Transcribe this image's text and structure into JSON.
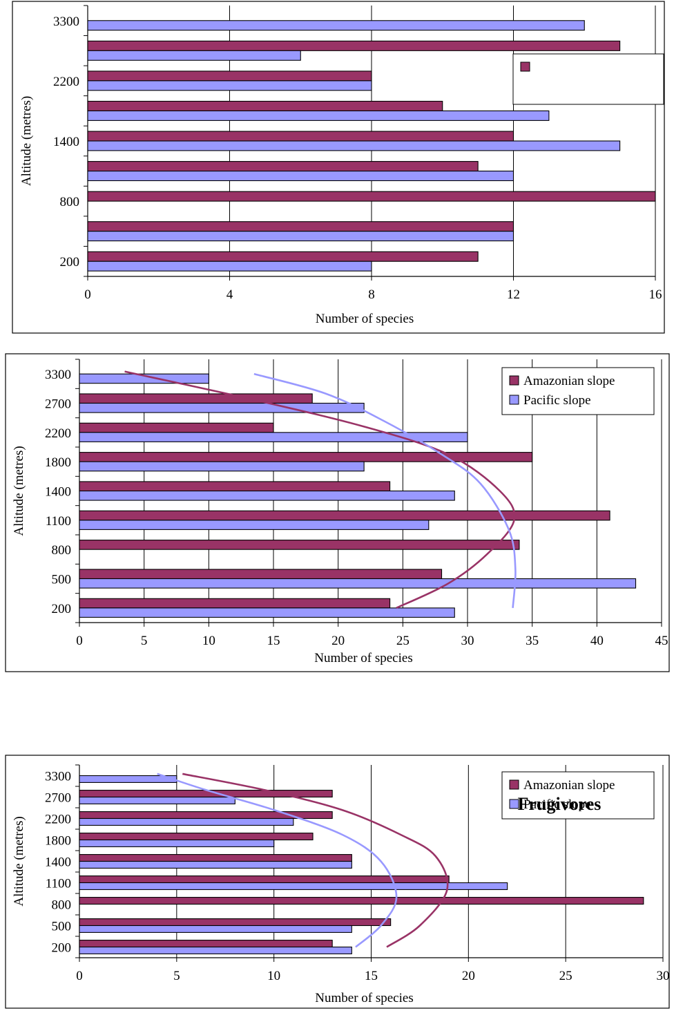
{
  "colors": {
    "amazonian": "#993366",
    "pacific": "#9999FF",
    "amazonian_curve": "#993366",
    "pacific_curve": "#9999FF"
  },
  "chart_data": [
    {
      "type": "bar",
      "orientation": "horizontal",
      "title": "",
      "xlabel": "Number of species",
      "ylabel": "Altitude (metres)",
      "xlim": [
        0,
        16
      ],
      "xticks": [
        "0",
        "4",
        "8",
        "12",
        "16"
      ],
      "categories": [
        "200",
        "",
        "800",
        "",
        "1400",
        "",
        "2200",
        "",
        "3300"
      ],
      "series": [
        {
          "key": "amazonian",
          "values": [
            11,
            12,
            16,
            11,
            12,
            10,
            8,
            15,
            null
          ]
        },
        {
          "key": "pacific",
          "values": [
            8,
            12,
            null,
            12,
            15,
            13,
            8,
            6,
            14
          ]
        }
      ],
      "legend": {
        "placement": "top-right",
        "entries": [
          ""
        ]
      },
      "grid": "vertical",
      "annotation": ""
    },
    {
      "type": "bar",
      "orientation": "horizontal",
      "title": "",
      "xlabel": "Number of species",
      "ylabel": "Altitude (metres)",
      "xlim": [
        0,
        45
      ],
      "xticks": [
        "0",
        "5",
        "10",
        "15",
        "20",
        "25",
        "30",
        "35",
        "40",
        "45"
      ],
      "categories": [
        "200",
        "500",
        "800",
        "1100",
        "1400",
        "1800",
        "2200",
        "2700",
        "3300"
      ],
      "series": [
        {
          "key": "amazonian",
          "name": "Amazonian slope",
          "values": [
            24,
            28,
            34,
            41,
            24,
            35,
            15,
            18,
            null
          ]
        },
        {
          "key": "pacific",
          "name": "Pacific slope",
          "values": [
            29,
            43,
            null,
            27,
            29,
            22,
            30,
            22,
            10
          ]
        }
      ],
      "legend": {
        "placement": "top-right",
        "entries": [
          "Amazonian slope",
          "Pacific slope"
        ]
      },
      "grid": "vertical",
      "trend_curves": [
        {
          "key": "amazonian_curve",
          "points": [
            [
              24.5,
              200
            ],
            [
              28.5,
              450
            ],
            [
              31.5,
              750
            ],
            [
              33.6,
              1100
            ],
            [
              32.5,
              1400
            ],
            [
              28.5,
              1900
            ],
            [
              22,
              2300
            ],
            [
              13,
              2800
            ],
            [
              3.5,
              3350
            ]
          ]
        },
        {
          "key": "pacific_curve",
          "points": [
            [
              33.5,
              200
            ],
            [
              33.7,
              600
            ],
            [
              33.2,
              1000
            ],
            [
              31,
              1500
            ],
            [
              28,
              1900
            ],
            [
              23.5,
              2400
            ],
            [
              19,
              2900
            ],
            [
              13.5,
              3300
            ]
          ]
        }
      ],
      "annotation": ""
    },
    {
      "type": "bar",
      "orientation": "horizontal",
      "title": "",
      "xlabel": "Number of species",
      "ylabel": "Altitude (metres)",
      "xlim": [
        0,
        30
      ],
      "xticks": [
        "0",
        "5",
        "10",
        "15",
        "20",
        "25",
        "30"
      ],
      "categories": [
        "200",
        "500",
        "800",
        "1100",
        "1400",
        "1800",
        "2200",
        "2700",
        "3300"
      ],
      "series": [
        {
          "key": "amazonian",
          "name": "Amazonian slope",
          "values": [
            13,
            16,
            29,
            19,
            14,
            12,
            13,
            13,
            null
          ]
        },
        {
          "key": "pacific",
          "name": "Pacific slope",
          "values": [
            14,
            14,
            null,
            22,
            14,
            10,
            11,
            8,
            5
          ]
        }
      ],
      "legend": {
        "placement": "top-right",
        "entries": [
          "Amazonian slope",
          "Pacific slope"
        ]
      },
      "grid": "vertical",
      "trend_curves": [
        {
          "key": "amazonian_curve",
          "points": [
            [
              15.8,
              200
            ],
            [
              17.5,
              500
            ],
            [
              18.9,
              1000
            ],
            [
              18.3,
              1500
            ],
            [
              16.5,
              1900
            ],
            [
              13.5,
              2400
            ],
            [
              9.5,
              2900
            ],
            [
              5.3,
              3350
            ]
          ]
        },
        {
          "key": "pacific_curve",
          "points": [
            [
              14.2,
              200
            ],
            [
              15.5,
              500
            ],
            [
              16.3,
              900
            ],
            [
              15.5,
              1400
            ],
            [
              13.5,
              1900
            ],
            [
              10,
              2400
            ],
            [
              6.5,
              2900
            ],
            [
              4,
              3350
            ]
          ]
        }
      ],
      "annotation": "Frugivores"
    }
  ]
}
